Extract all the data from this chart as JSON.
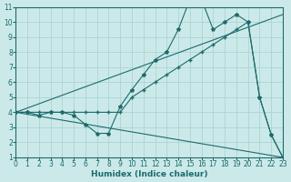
{
  "xlabel": "Humidex (Indice chaleur)",
  "xlim": [
    0,
    23
  ],
  "ylim": [
    1,
    11
  ],
  "xticks": [
    0,
    1,
    2,
    3,
    4,
    5,
    6,
    7,
    8,
    9,
    10,
    11,
    12,
    13,
    14,
    15,
    16,
    17,
    18,
    19,
    20,
    21,
    22,
    23
  ],
  "yticks": [
    1,
    2,
    3,
    4,
    5,
    6,
    7,
    8,
    9,
    10,
    11
  ],
  "background_color": "#cce9e9",
  "grid_color": "#aad4d4",
  "line_color": "#1d6b6b",
  "line1_x": [
    0,
    1,
    2,
    3,
    4,
    5,
    6,
    7,
    8,
    9,
    10,
    11,
    12,
    13,
    14,
    15,
    16,
    17,
    18,
    19,
    20,
    21,
    22,
    23
  ],
  "line1_y": [
    4,
    4,
    3.8,
    4,
    4,
    3.8,
    3.2,
    2.6,
    2.6,
    4.4,
    5.5,
    6.5,
    7.5,
    8.0,
    9.5,
    11.5,
    11.5,
    9.5,
    10,
    10.5,
    10,
    5,
    2.5,
    1
  ],
  "line2_x": [
    0,
    1,
    2,
    3,
    4,
    5,
    6,
    7,
    8,
    9,
    10,
    11,
    12,
    13,
    14,
    15,
    16,
    17,
    18,
    19,
    20,
    21,
    22,
    23
  ],
  "line2_y": [
    4,
    4,
    4,
    4,
    4,
    4,
    4,
    4,
    4,
    4,
    5,
    5.5,
    6,
    6.5,
    7,
    7.5,
    8,
    8.5,
    9,
    9.5,
    10,
    5,
    2.5,
    1
  ],
  "line3_x": [
    0,
    23
  ],
  "line3_y": [
    4,
    10.5
  ],
  "line4_x": [
    0,
    23
  ],
  "line4_y": [
    4,
    1
  ]
}
